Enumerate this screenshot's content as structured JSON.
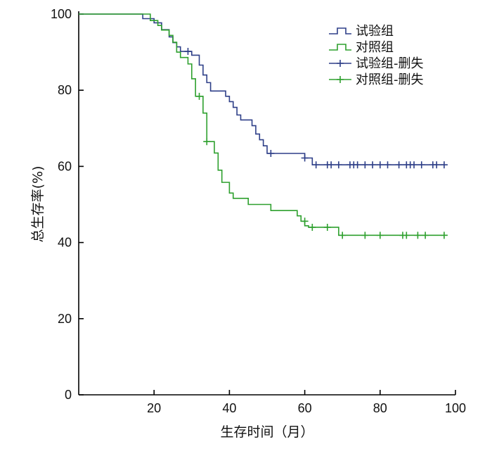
{
  "chart_data": {
    "type": "line",
    "subtype": "kaplan-meier-step",
    "xlabel": "生存时间（月）",
    "ylabel": "总生存率(%)",
    "xlim": [
      0,
      100
    ],
    "ylim": [
      0,
      100
    ],
    "xticks": [
      20,
      40,
      60,
      80,
      100
    ],
    "yticks": [
      0,
      20,
      40,
      60,
      80,
      100
    ],
    "grid": false,
    "legend_position": "top-right",
    "legend": [
      "试验组",
      "对照组",
      "试验组-删失",
      "对照组-删失"
    ],
    "colors": {
      "experimental": "#2e3f88",
      "control": "#2ea02e",
      "axis": "#000000"
    },
    "series": [
      {
        "name": "试验组",
        "steps": [
          [
            0,
            100
          ],
          [
            17,
            98.8
          ],
          [
            20,
            97.7
          ],
          [
            22,
            95.9
          ],
          [
            24,
            94
          ],
          [
            25,
            92.5
          ],
          [
            26,
            91.4
          ],
          [
            27,
            90.2
          ],
          [
            30,
            89.2
          ],
          [
            32,
            86.6
          ],
          [
            33,
            84
          ],
          [
            34,
            82
          ],
          [
            35,
            79.8
          ],
          [
            39,
            78.4
          ],
          [
            40,
            77
          ],
          [
            41,
            75.5
          ],
          [
            42,
            73.5
          ],
          [
            43,
            72.2
          ],
          [
            46,
            70.7
          ],
          [
            47,
            68.5
          ],
          [
            48,
            67
          ],
          [
            49,
            65.4
          ],
          [
            50,
            63.4
          ],
          [
            60,
            62.2
          ],
          [
            62,
            60.4
          ]
        ],
        "censored": [
          [
            29,
            90.2
          ],
          [
            51,
            63.4
          ],
          [
            60,
            62.2
          ],
          [
            63,
            60.4
          ],
          [
            66,
            60.4
          ],
          [
            67,
            60.4
          ],
          [
            69,
            60.4
          ],
          [
            72,
            60.4
          ],
          [
            73,
            60.4
          ],
          [
            74,
            60.4
          ],
          [
            76,
            60.4
          ],
          [
            78,
            60.4
          ],
          [
            80,
            60.4
          ],
          [
            82,
            60.4
          ],
          [
            85,
            60.4
          ],
          [
            87,
            60.4
          ],
          [
            88,
            60.4
          ],
          [
            89,
            60.4
          ],
          [
            91,
            60.4
          ],
          [
            94,
            60.4
          ],
          [
            95,
            60.4
          ],
          [
            97,
            60.4
          ]
        ]
      },
      {
        "name": "对照组",
        "steps": [
          [
            0,
            100
          ],
          [
            19,
            98.3
          ],
          [
            21,
            97
          ],
          [
            22,
            95.8
          ],
          [
            24,
            94.4
          ],
          [
            25,
            92.6
          ],
          [
            26,
            90
          ],
          [
            27,
            88.6
          ],
          [
            29,
            86.9
          ],
          [
            30,
            83
          ],
          [
            31,
            78.4
          ],
          [
            33,
            74
          ],
          [
            34,
            66.5
          ],
          [
            36,
            63.5
          ],
          [
            37,
            59
          ],
          [
            38,
            55.8
          ],
          [
            40,
            53
          ],
          [
            41,
            51.6
          ],
          [
            45,
            50
          ],
          [
            51,
            48.4
          ],
          [
            58,
            47
          ],
          [
            59,
            45.6
          ],
          [
            60,
            44.4
          ],
          [
            61,
            44
          ],
          [
            69,
            41.9
          ]
        ],
        "censored": [
          [
            32,
            78.4
          ],
          [
            34,
            66.5
          ],
          [
            60,
            45.6
          ],
          [
            62,
            44
          ],
          [
            66,
            44
          ],
          [
            70,
            41.9
          ],
          [
            76,
            41.9
          ],
          [
            80,
            41.9
          ],
          [
            86,
            41.9
          ],
          [
            87,
            41.9
          ],
          [
            90,
            41.9
          ],
          [
            92,
            41.9
          ],
          [
            97,
            41.9
          ]
        ]
      }
    ]
  }
}
